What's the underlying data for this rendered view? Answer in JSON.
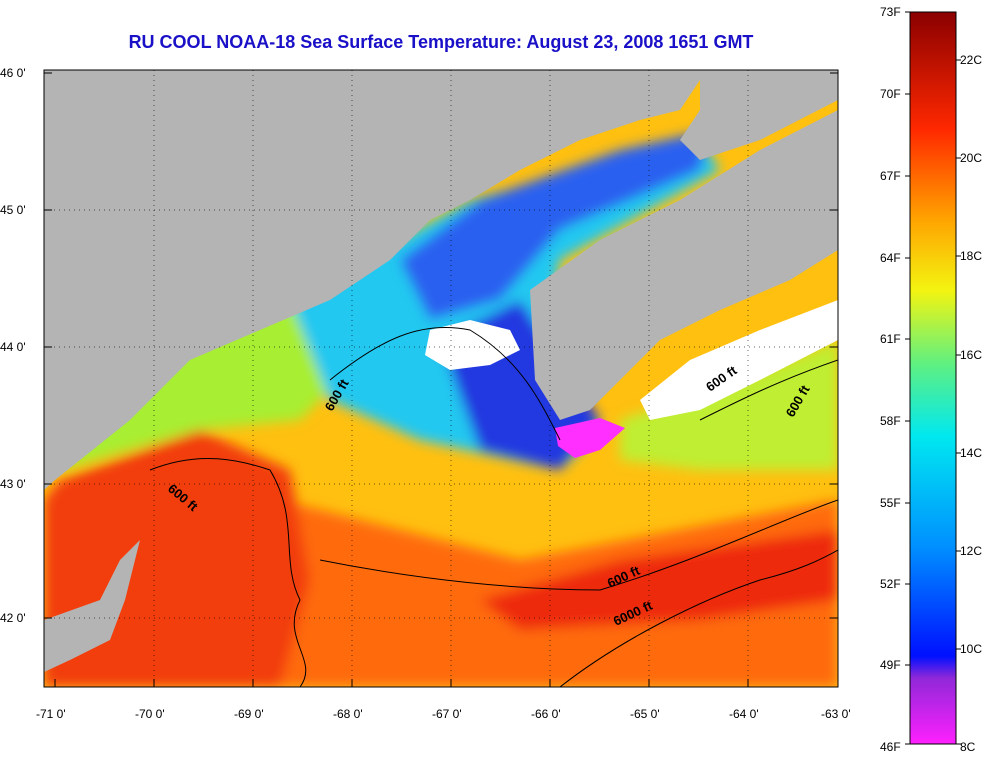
{
  "title": "RU COOL  NOAA-18  Sea Surface Temperature:  August 23, 2008 1651 GMT",
  "lat_labels": [
    "46 0'",
    "45 0'",
    "44 0'",
    "43 0'",
    "42 0'"
  ],
  "lon_labels": [
    "-71 0'",
    "-70 0'",
    "-69 0'",
    "-68 0'",
    "-67 0'",
    "-66 0'",
    "-65 0'",
    "-64 0'",
    "-63 0'"
  ],
  "contours": {
    "c1": "600 ft",
    "c2": "600 ft",
    "c3": "600 ft",
    "c4": "600 ft",
    "c5": "600 ft",
    "c6": "6000 ft"
  },
  "colorbar": {
    "f_labels": [
      "73F",
      "70F",
      "67F",
      "64F",
      "61F",
      "58F",
      "55F",
      "52F",
      "49F",
      "46F"
    ],
    "c_labels": [
      "22C",
      "20C",
      "18C",
      "16C",
      "14C",
      "12C",
      "10C",
      "8C"
    ]
  },
  "colors": {
    "land": "#b4b4b4",
    "title": "#1a10c8",
    "cold": "#1530e8",
    "warm": "#f23c10"
  }
}
